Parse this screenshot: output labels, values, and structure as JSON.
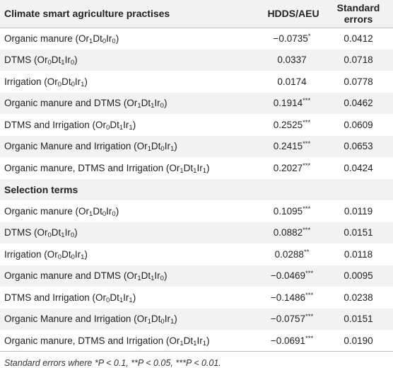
{
  "table": {
    "headers": [
      "Climate smart agriculture practises",
      "HDDS/AEU",
      "Standard errors"
    ],
    "rows": [
      {
        "label": "Organic manure (Or<sub>1</sub>Dt<sub>0</sub>Ir<sub>0</sub>)",
        "coef": "−0.0735",
        "sig": "*",
        "se": "0.0412"
      },
      {
        "label": "DTMS (Or<sub>0</sub>Dt<sub>1</sub>Ir<sub>0</sub>)",
        "coef": "0.0337",
        "sig": "",
        "se": "0.0718"
      },
      {
        "label": "Irrigation (Or<sub>0</sub>Dt<sub>0</sub>Ir<sub>1</sub>)",
        "coef": "0.0174",
        "sig": "",
        "se": "0.0778"
      },
      {
        "label": "Organic manure and DTMS (Or<sub>1</sub>Dt<sub>1</sub>Ir<sub>0</sub>)",
        "coef": "0.1914",
        "sig": "***",
        "se": "0.0462"
      },
      {
        "label": "DTMS and Irrigation (Or<sub>0</sub>Dt<sub>1</sub>Ir<sub>1</sub>)",
        "coef": "0.2525",
        "sig": "***",
        "se": "0.0609"
      },
      {
        "label": "Organic Manure and Irrigation (Or<sub>1</sub>Dt<sub>0</sub>Ir<sub>1</sub>)",
        "coef": "0.2415",
        "sig": "***",
        "se": "0.0653"
      },
      {
        "label": "Organic manure, DTMS and Irrigation (Or<sub>1</sub>Dt<sub>1</sub>Ir<sub>1</sub>)",
        "coef": "0.2027",
        "sig": "***",
        "se": "0.0424"
      }
    ],
    "section_title": "Selection terms",
    "selection_rows": [
      {
        "label": "Organic manure (Or<sub>1</sub>Dt<sub>0</sub>Ir<sub>0</sub>)",
        "coef": "0.1095",
        "sig": "***",
        "se": "0.0119"
      },
      {
        "label": "DTMS (Or<sub>0</sub>Dt<sub>1</sub>Ir<sub>0</sub>)",
        "coef": "0.0882",
        "sig": "***",
        "se": "0.0151"
      },
      {
        "label": "Irrigation (Or<sub>0</sub>Dt<sub>0</sub>Ir<sub>1</sub>)",
        "coef": "0.0288",
        "sig": "**",
        "se": "0.0118"
      },
      {
        "label": "Organic manure and DTMS (Or<sub>1</sub>Dt<sub>1</sub>Ir<sub>0</sub>)",
        "coef": "−0.0469",
        "sig": "***",
        "se": "0.0095"
      },
      {
        "label": "DTMS and Irrigation (Or<sub>0</sub>Dt<sub>1</sub>Ir<sub>1</sub>)",
        "coef": "−0.1486",
        "sig": "***",
        "se": "0.0238"
      },
      {
        "label": "Organic Manure and Irrigation (Or<sub>1</sub>Dt<sub>0</sub>Ir<sub>1</sub>)",
        "coef": "−0.0757",
        "sig": "***",
        "se": "0.0151"
      },
      {
        "label": "Organic manure, DTMS and Irrigation (Or<sub>1</sub>Dt<sub>1</sub>Ir<sub>1</sub>)",
        "coef": "−0.0691",
        "sig": "***",
        "se": "0.0190"
      }
    ]
  },
  "footnote": "Standard errors where *P < 0.1, **P < 0.05, ***P < 0.01."
}
